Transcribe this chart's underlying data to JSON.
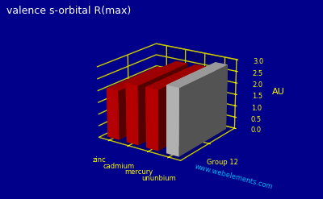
{
  "title": "valence s-orbital R(max)",
  "elements": [
    "zinc",
    "cadmium",
    "mercury",
    "ununbium"
  ],
  "values": [
    2.08,
    2.5,
    2.53,
    2.8
  ],
  "ylabel": "AU",
  "group_label": "Group 12",
  "website": "www.webelements.com",
  "background_color": "#00008B",
  "bar_colors": [
    "#cc0000",
    "#cc0000",
    "#cc0000",
    "#c8c8c8"
  ],
  "grid_color": "#cccc00",
  "title_color": "#ffffff",
  "label_color": "#ffff00",
  "ylim": [
    0.0,
    3.0
  ],
  "yticks": [
    0.0,
    0.5,
    1.0,
    1.5,
    2.0,
    2.5,
    3.0
  ]
}
